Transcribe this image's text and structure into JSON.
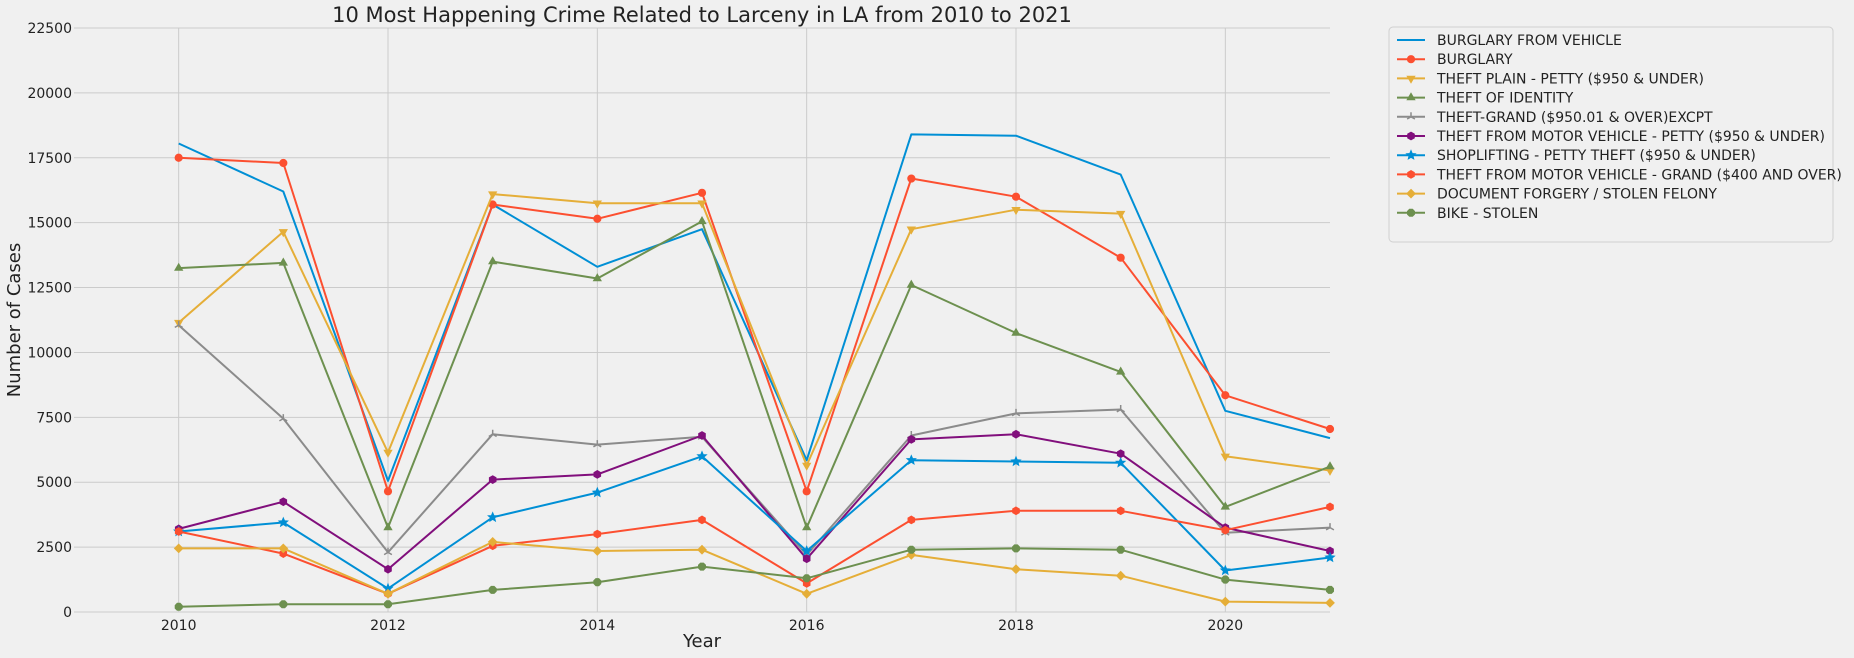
{
  "chart_data": {
    "type": "line",
    "title": "10 Most Happening Crime Related to Larceny in LA from 2010 to 2021",
    "xlabel": "Year",
    "ylabel": "Number of Cases",
    "xlim": [
      2009,
      2021
    ],
    "ylim": [
      0,
      22500
    ],
    "xticks": [
      2010,
      2012,
      2014,
      2016,
      2018,
      2020
    ],
    "yticks": [
      0,
      2500,
      5000,
      7500,
      10000,
      12500,
      15000,
      17500,
      20000,
      22500
    ],
    "grid": true,
    "legend_position": "outside-right",
    "x": [
      2010,
      2011,
      2012,
      2013,
      2014,
      2015,
      2016,
      2017,
      2018,
      2019,
      2020,
      2021
    ],
    "series": [
      {
        "name": "BURGLARY FROM VEHICLE",
        "color": "#008fd5",
        "marker": "none",
        "values": [
          18050,
          16200,
          5050,
          15700,
          13300,
          14750,
          5850,
          18400,
          18350,
          16850,
          7750,
          6700
        ]
      },
      {
        "name": "BURGLARY",
        "color": "#fc4f30",
        "marker": "circle",
        "values": [
          17500,
          17300,
          4650,
          15700,
          15150,
          16150,
          4650,
          16700,
          16000,
          13650,
          8350,
          7050
        ]
      },
      {
        "name": "THEFT PLAIN - PETTY ($950 & UNDER)",
        "color": "#e5ae38",
        "marker": "triangle-down",
        "values": [
          11150,
          14650,
          6150,
          16100,
          15750,
          15750,
          5650,
          14750,
          15500,
          15350,
          6000,
          5450
        ]
      },
      {
        "name": "THEFT OF IDENTITY",
        "color": "#6d904f",
        "marker": "triangle-up",
        "values": [
          13250,
          13450,
          3250,
          13500,
          12850,
          15050,
          3250,
          12600,
          10750,
          9250,
          4050,
          5600
        ]
      },
      {
        "name": "THEFT-GRAND ($950.01 & OVER)EXCPT",
        "color": "#8b8b8b",
        "marker": "tri",
        "values": [
          11050,
          7450,
          2300,
          6850,
          6450,
          6750,
          2200,
          6800,
          7650,
          7800,
          3050,
          3250
        ]
      },
      {
        "name": "THEFT FROM MOTOR VEHICLE - PETTY ($950 & UNDER)",
        "color": "#810f7c",
        "marker": "hexagon",
        "values": [
          3200,
          4250,
          1650,
          5100,
          5300,
          6800,
          2050,
          6650,
          6850,
          6100,
          3250,
          2350
        ]
      },
      {
        "name": "SHOPLIFTING - PETTY THEFT ($950 & UNDER)",
        "color": "#008fd5",
        "marker": "star",
        "values": [
          3100,
          3450,
          900,
          3650,
          4600,
          6000,
          2350,
          5850,
          5800,
          5750,
          1600,
          2100
        ]
      },
      {
        "name": "THEFT FROM MOTOR VEHICLE - GRAND ($400 AND OVER)",
        "color": "#fc4f30",
        "marker": "hexagon",
        "values": [
          3100,
          2250,
          700,
          2550,
          3000,
          3550,
          1100,
          3550,
          3900,
          3900,
          3150,
          4050
        ]
      },
      {
        "name": "DOCUMENT FORGERY / STOLEN FELONY",
        "color": "#e5ae38",
        "marker": "diamond",
        "values": [
          2450,
          2450,
          700,
          2700,
          2350,
          2400,
          700,
          2200,
          1650,
          1400,
          400,
          350
        ]
      },
      {
        "name": "BIKE - STOLEN",
        "color": "#6d904f",
        "marker": "octagon",
        "values": [
          200,
          300,
          300,
          850,
          1150,
          1750,
          1300,
          2400,
          2450,
          2400,
          1250,
          850
        ]
      }
    ]
  }
}
